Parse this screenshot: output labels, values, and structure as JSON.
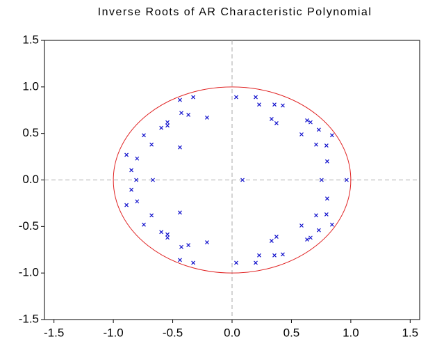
{
  "chart_data": {
    "type": "scatter",
    "title": "Inverse Roots of AR Characteristic Polynomial",
    "xlim": [
      -1.58,
      1.58
    ],
    "ylim": [
      -1.5,
      1.5
    ],
    "xticks": [
      -1.5,
      {
        "value": -1.0,
        "label": "-1.0"
      },
      -0.5,
      {
        "value": 0,
        "label": "0.0"
      },
      0.5,
      {
        "value": 1.0,
        "label": "1.0"
      },
      1.5
    ],
    "yticks": [
      -1.5,
      {
        "value": -1.0,
        "label": "-1.0"
      },
      -0.5,
      {
        "value": 0,
        "label": "0.0"
      },
      0.5,
      {
        "value": 1.0,
        "label": "1.0"
      },
      1.5
    ],
    "circle_color": "#e02020",
    "series": [
      {
        "color": "#1010cc",
        "x": [
          0.965,
          0.754,
          0.088,
          -0.667,
          -0.807,
          -0.889,
          -0.848,
          -0.8,
          -0.743,
          -0.678,
          -0.596,
          -0.544,
          -0.544,
          -0.439,
          -0.327,
          -0.368,
          -0.211,
          -0.439,
          -0.427,
          0.035,
          0.199,
          0.228,
          0.357,
          0.427,
          0.333,
          0.374,
          0.585,
          0.632,
          0.661,
          0.731,
          0.708,
          0.795,
          0.842,
          0.801,
          -0.889,
          -0.848,
          -0.8,
          -0.743,
          -0.678,
          -0.596,
          -0.544,
          -0.544,
          -0.439,
          -0.327,
          -0.368,
          -0.211,
          -0.439,
          -0.427,
          0.035,
          0.199,
          0.228,
          0.357,
          0.427,
          0.333,
          0.374,
          0.585,
          0.632,
          0.661,
          0.731,
          0.708,
          0.795,
          0.842,
          0.801
        ],
        "values": [
          0,
          0,
          0,
          0,
          0,
          0.27,
          0.105,
          0.23,
          0.48,
          0.38,
          0.56,
          0.62,
          0.585,
          0.86,
          0.89,
          0.7,
          0.67,
          0.35,
          0.72,
          0.89,
          0.89,
          0.81,
          0.81,
          0.8,
          0.655,
          0.61,
          0.49,
          0.64,
          0.62,
          0.54,
          0.38,
          0.37,
          0.48,
          0.2,
          -0.27,
          -0.105,
          -0.23,
          -0.48,
          -0.38,
          -0.56,
          -0.62,
          -0.585,
          -0.86,
          -0.89,
          -0.7,
          -0.67,
          -0.35,
          -0.72,
          -0.89,
          -0.89,
          -0.81,
          -0.81,
          -0.8,
          -0.655,
          -0.61,
          -0.49,
          -0.64,
          -0.62,
          -0.54,
          -0.38,
          -0.37,
          -0.48,
          -0.2
        ]
      }
    ]
  }
}
